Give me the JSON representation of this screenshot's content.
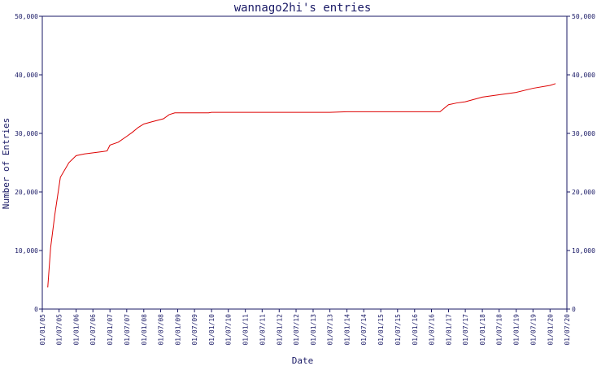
{
  "colors": {
    "axis": "#1a1a66",
    "series": "#dd0000",
    "background": "#ffffff"
  },
  "chart_data": {
    "type": "line",
    "title": "wannago2hi's entries",
    "xlabel": "Date",
    "ylabel": "Number of Entries",
    "x_range": [
      "2005-01-01",
      "2020-07-01"
    ],
    "ylim": [
      0,
      50000
    ],
    "y_ticks": [
      0,
      10000,
      20000,
      30000,
      40000,
      50000
    ],
    "y_tick_labels": [
      "0",
      "10,000",
      "20,000",
      "30,000",
      "40,000",
      "50,000"
    ],
    "right_y_axis": true,
    "grid": false,
    "x_ticks": [
      {
        "date": "2005-01-01",
        "label": "01/01/05"
      },
      {
        "date": "2005-07-01",
        "label": "01/07/05"
      },
      {
        "date": "2006-01-01",
        "label": "01/01/06"
      },
      {
        "date": "2006-07-01",
        "label": "01/07/06"
      },
      {
        "date": "2007-01-01",
        "label": "01/01/07"
      },
      {
        "date": "2007-07-01",
        "label": "01/07/07"
      },
      {
        "date": "2008-01-01",
        "label": "01/01/08"
      },
      {
        "date": "2008-07-01",
        "label": "01/07/08"
      },
      {
        "date": "2009-01-01",
        "label": "01/01/09"
      },
      {
        "date": "2009-07-01",
        "label": "01/07/09"
      },
      {
        "date": "2010-01-01",
        "label": "01/01/10"
      },
      {
        "date": "2010-07-01",
        "label": "01/07/10"
      },
      {
        "date": "2011-01-01",
        "label": "01/01/11"
      },
      {
        "date": "2011-07-01",
        "label": "01/07/11"
      },
      {
        "date": "2012-01-01",
        "label": "01/01/12"
      },
      {
        "date": "2012-07-01",
        "label": "01/07/12"
      },
      {
        "date": "2013-01-01",
        "label": "01/01/13"
      },
      {
        "date": "2013-07-01",
        "label": "01/07/13"
      },
      {
        "date": "2014-01-01",
        "label": "01/01/14"
      },
      {
        "date": "2014-07-01",
        "label": "01/07/14"
      },
      {
        "date": "2015-01-01",
        "label": "01/01/15"
      },
      {
        "date": "2015-07-01",
        "label": "01/07/15"
      },
      {
        "date": "2016-01-01",
        "label": "01/01/16"
      },
      {
        "date": "2016-07-01",
        "label": "01/07/16"
      },
      {
        "date": "2017-01-01",
        "label": "01/01/17"
      },
      {
        "date": "2017-07-01",
        "label": "01/07/17"
      },
      {
        "date": "2018-01-01",
        "label": "01/01/18"
      },
      {
        "date": "2018-07-01",
        "label": "01/07/18"
      },
      {
        "date": "2019-01-01",
        "label": "01/01/19"
      },
      {
        "date": "2019-07-01",
        "label": "01/07/19"
      },
      {
        "date": "2020-01-01",
        "label": "01/01/20"
      },
      {
        "date": "2020-07-01",
        "label": "01/07/20"
      }
    ],
    "series": [
      {
        "points": [
          [
            "2005-03-01",
            3700
          ],
          [
            "2005-04-01",
            10500
          ],
          [
            "2005-05-15",
            16000
          ],
          [
            "2005-07-15",
            22500
          ],
          [
            "2005-10-15",
            25000
          ],
          [
            "2006-01-01",
            26200
          ],
          [
            "2006-04-01",
            26500
          ],
          [
            "2006-09-01",
            26800
          ],
          [
            "2006-12-01",
            27000
          ],
          [
            "2007-01-01",
            28000
          ],
          [
            "2007-04-01",
            28500
          ],
          [
            "2007-07-01",
            29500
          ],
          [
            "2007-09-01",
            30200
          ],
          [
            "2007-11-01",
            31000
          ],
          [
            "2008-01-01",
            31600
          ],
          [
            "2008-04-01",
            32000
          ],
          [
            "2008-08-01",
            32500
          ],
          [
            "2008-10-01",
            33200
          ],
          [
            "2008-12-01",
            33500
          ],
          [
            "2009-06-01",
            33500
          ],
          [
            "2009-12-01",
            33500
          ],
          [
            "2010-01-01",
            33600
          ],
          [
            "2011-01-01",
            33600
          ],
          [
            "2012-01-01",
            33600
          ],
          [
            "2013-01-01",
            33600
          ],
          [
            "2013-07-01",
            33600
          ],
          [
            "2014-01-01",
            33700
          ],
          [
            "2015-01-01",
            33700
          ],
          [
            "2016-01-01",
            33700
          ],
          [
            "2016-10-01",
            33700
          ],
          [
            "2017-01-01",
            34900
          ],
          [
            "2017-04-01",
            35200
          ],
          [
            "2017-07-01",
            35400
          ],
          [
            "2018-01-01",
            36200
          ],
          [
            "2018-07-01",
            36600
          ],
          [
            "2019-01-01",
            37000
          ],
          [
            "2019-07-01",
            37700
          ],
          [
            "2020-01-01",
            38200
          ],
          [
            "2020-03-01",
            38500
          ]
        ]
      }
    ]
  }
}
